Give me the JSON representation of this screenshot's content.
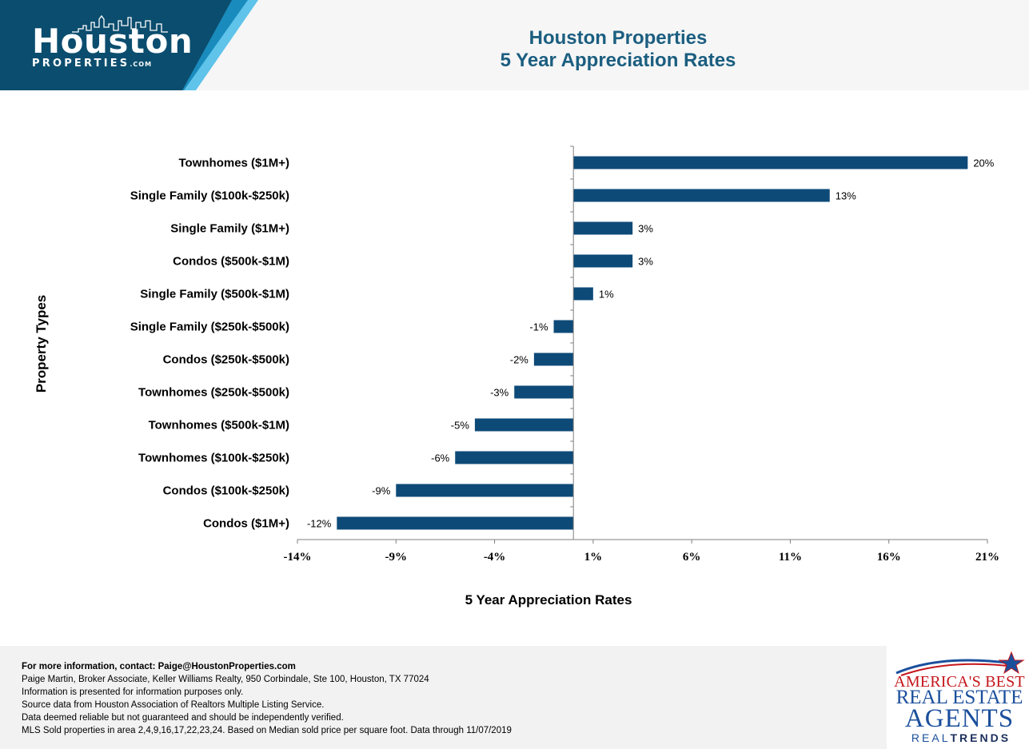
{
  "header": {
    "logo_main": "Houston",
    "logo_sub": "PROPERTIES",
    "logo_dotcom": ".COM",
    "title_line1": "Houston Properties",
    "title_line2": "5 Year Appreciation Rates",
    "colors": {
      "panel_dark": "#0b4d6e",
      "panel_mid": "#1a8bbd",
      "panel_light": "#5fc3ea",
      "title": "#1b5e80"
    }
  },
  "chart_data": {
    "type": "bar",
    "orientation": "horizontal",
    "title": "Houston Properties 5 Year Appreciation Rates",
    "xlabel": "5 Year Appreciation Rates",
    "ylabel": "Property Types",
    "categories": [
      "Townhomes ($1M+)",
      "Single Family ($100k-$250k)",
      "Single Family ($1M+)",
      "Condos ($500k-$1M)",
      "Single Family ($500k-$1M)",
      "Single Family ($250k-$500k)",
      "Condos ($250k-$500k)",
      "Townhomes ($250k-$500k)",
      "Townhomes ($500k-$1M)",
      "Townhomes ($100k-$250k)",
      "Condos ($100k-$250k)",
      "Condos ($1M+)"
    ],
    "values": [
      20,
      13,
      3,
      3,
      1,
      -1,
      -2,
      -3,
      -5,
      -6,
      -9,
      -12
    ],
    "data_labels": [
      "20%",
      "13%",
      "3%",
      "3%",
      "1%",
      "-1%",
      "-2%",
      "-3%",
      "-5%",
      "-6%",
      "-9%",
      "-12%"
    ],
    "xlim": [
      -14,
      21
    ],
    "xticks": [
      -14,
      -9,
      -4,
      1,
      6,
      11,
      16,
      21
    ],
    "xtick_labels": [
      "-14%",
      "-9%",
      "-4%",
      "1%",
      "6%",
      "11%",
      "16%",
      "21%"
    ],
    "bar_color": "#0d4a78",
    "grid": false,
    "legend": "none"
  },
  "footer": {
    "lines": [
      "For more information, contact: Paige@HoustonProperties.com",
      "Paige Martin, Broker Associate, Keller Williams Realty, 950 Corbindale, Ste 100, Houston, TX 77024",
      "Information is presented for information purposes only.",
      "Source data from Houston Association of Realtors Multiple Listing Service.",
      "Data deemed reliable but not guaranteed and should be independently verified.",
      "MLS Sold properties in area 2,4,9,16,17,22,23,24. Based on Median sold price per square foot. Data through 11/07/2019"
    ]
  },
  "badge": {
    "line1": "AMERICA'S BEST",
    "line2": "REAL ESTATE",
    "line3": "AGENTS",
    "line4_a": "REAL",
    "line4_b": "TRENDS",
    "colors": {
      "red": "#c4161c",
      "blue": "#1b4f9c"
    }
  }
}
